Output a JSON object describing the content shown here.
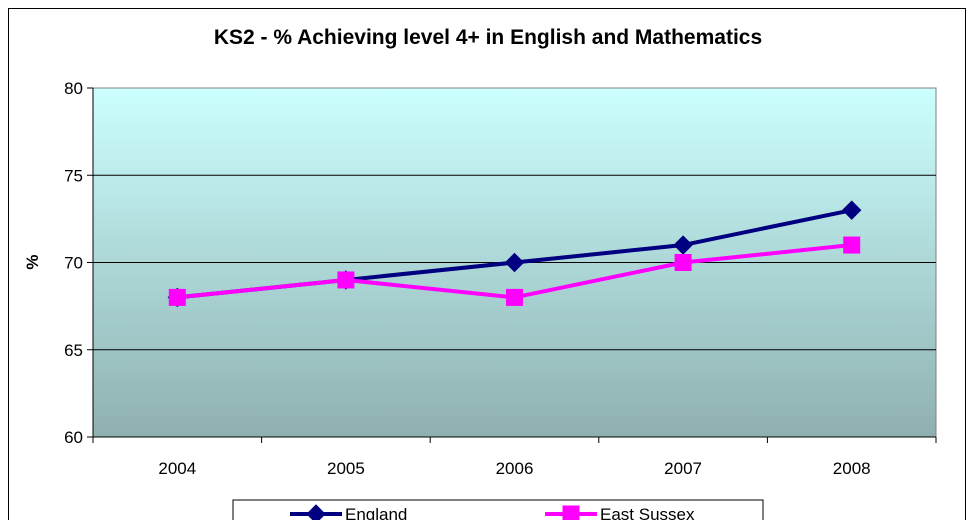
{
  "chart_data": {
    "type": "line",
    "title": "KS2 - % Achieving level 4+ in English and Mathematics",
    "xlabel": "",
    "ylabel": "%",
    "categories": [
      "2004",
      "2005",
      "2006",
      "2007",
      "2008"
    ],
    "ylim": [
      60,
      80
    ],
    "yticks": [
      "60",
      "65",
      "70",
      "75",
      "80"
    ],
    "grid": "horizontal",
    "legend": "bottom",
    "series": [
      {
        "name": "England",
        "values": [
          68,
          69,
          70,
          71,
          73
        ],
        "color": "#000080",
        "marker": "diamond"
      },
      {
        "name": "East Sussex",
        "values": [
          68,
          69,
          68,
          70,
          71
        ],
        "color": "#FF00FF",
        "marker": "square"
      }
    ]
  }
}
